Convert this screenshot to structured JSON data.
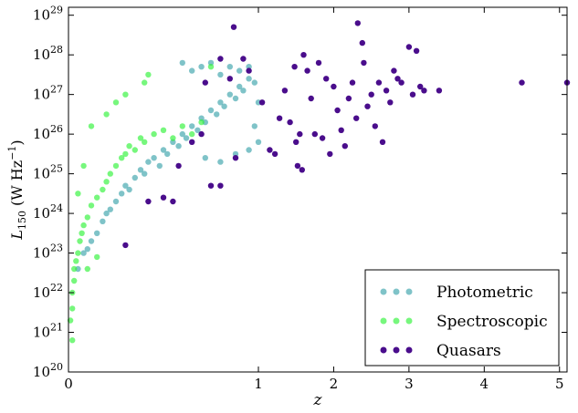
{
  "chart_data": {
    "type": "scatter",
    "title": "",
    "xlabel": "z",
    "ylabel": "L150 (W Hz−1)",
    "ylabel_parts": {
      "main": "L",
      "sub": "150",
      "unit_open": " (W Hz",
      "sup": "−1",
      "unit_close": ")"
    },
    "x_scale": "custom-stretched",
    "x_ticks": [
      {
        "value": 0,
        "label": "0"
      },
      {
        "value": 1,
        "label": "1"
      },
      {
        "value": 2,
        "label": "2"
      },
      {
        "value": 3,
        "label": "3"
      },
      {
        "value": 4,
        "label": "4"
      },
      {
        "value": 5,
        "label": "5"
      }
    ],
    "y_scale": "log",
    "y_ticks": [
      {
        "exp": 20,
        "base": "10",
        "sup": "20"
      },
      {
        "exp": 21,
        "base": "10",
        "sup": "21"
      },
      {
        "exp": 22,
        "base": "10",
        "sup": "22"
      },
      {
        "exp": 23,
        "base": "10",
        "sup": "23"
      },
      {
        "exp": 24,
        "base": "10",
        "sup": "24"
      },
      {
        "exp": 25,
        "base": "10",
        "sup": "25"
      },
      {
        "exp": 26,
        "base": "10",
        "sup": "26"
      },
      {
        "exp": 27,
        "base": "10",
        "sup": "27"
      },
      {
        "exp": 28,
        "base": "10",
        "sup": "28"
      },
      {
        "exp": 29,
        "base": "10",
        "sup": "29"
      }
    ],
    "xlim": [
      0,
      5.1
    ],
    "ylim_log10": [
      20,
      29.2
    ],
    "grid": false,
    "legend_position": "bottom-right",
    "series": [
      {
        "name": "Photometric",
        "color": "#3aa3aa",
        "points": [
          [
            0.05,
            22.6
          ],
          [
            0.08,
            23.0
          ],
          [
            0.1,
            23.1
          ],
          [
            0.12,
            23.3
          ],
          [
            0.15,
            23.5
          ],
          [
            0.18,
            23.8
          ],
          [
            0.2,
            24.0
          ],
          [
            0.22,
            24.1
          ],
          [
            0.25,
            24.3
          ],
          [
            0.28,
            24.5
          ],
          [
            0.3,
            24.7
          ],
          [
            0.32,
            24.6
          ],
          [
            0.35,
            24.9
          ],
          [
            0.38,
            25.1
          ],
          [
            0.4,
            25.0
          ],
          [
            0.42,
            25.3
          ],
          [
            0.45,
            25.4
          ],
          [
            0.48,
            25.2
          ],
          [
            0.5,
            25.6
          ],
          [
            0.52,
            25.5
          ],
          [
            0.55,
            25.8
          ],
          [
            0.58,
            25.7
          ],
          [
            0.6,
            26.0
          ],
          [
            0.62,
            25.9
          ],
          [
            0.65,
            26.2
          ],
          [
            0.68,
            26.1
          ],
          [
            0.7,
            26.4
          ],
          [
            0.72,
            26.3
          ],
          [
            0.75,
            26.6
          ],
          [
            0.78,
            26.5
          ],
          [
            0.8,
            26.8
          ],
          [
            0.82,
            26.7
          ],
          [
            0.85,
            27.0
          ],
          [
            0.88,
            26.9
          ],
          [
            0.9,
            27.2
          ],
          [
            0.92,
            27.1
          ],
          [
            0.95,
            27.4
          ],
          [
            0.98,
            27.3
          ],
          [
            1.0,
            26.8
          ],
          [
            0.6,
            27.8
          ],
          [
            0.65,
            27.6
          ],
          [
            0.7,
            27.7
          ],
          [
            0.75,
            27.8
          ],
          [
            0.8,
            27.5
          ],
          [
            0.85,
            27.7
          ],
          [
            0.9,
            27.6
          ],
          [
            0.95,
            27.7
          ],
          [
            0.72,
            25.4
          ],
          [
            0.8,
            25.3
          ],
          [
            0.88,
            25.5
          ],
          [
            0.95,
            25.6
          ],
          [
            1.0,
            25.8
          ],
          [
            0.98,
            26.2
          ]
        ]
      },
      {
        "name": "Spectroscopic",
        "color": "#2ef238",
        "points": [
          [
            0.01,
            21.3
          ],
          [
            0.02,
            21.6
          ],
          [
            0.02,
            22.0
          ],
          [
            0.03,
            22.3
          ],
          [
            0.03,
            22.6
          ],
          [
            0.04,
            22.8
          ],
          [
            0.05,
            23.0
          ],
          [
            0.06,
            23.3
          ],
          [
            0.07,
            23.5
          ],
          [
            0.08,
            23.7
          ],
          [
            0.1,
            23.9
          ],
          [
            0.12,
            24.2
          ],
          [
            0.15,
            24.4
          ],
          [
            0.18,
            24.6
          ],
          [
            0.2,
            24.8
          ],
          [
            0.22,
            25.0
          ],
          [
            0.25,
            25.2
          ],
          [
            0.28,
            25.4
          ],
          [
            0.3,
            25.5
          ],
          [
            0.32,
            25.7
          ],
          [
            0.35,
            25.6
          ],
          [
            0.38,
            25.9
          ],
          [
            0.4,
            25.8
          ],
          [
            0.45,
            26.0
          ],
          [
            0.5,
            26.1
          ],
          [
            0.55,
            25.9
          ],
          [
            0.6,
            26.2
          ],
          [
            0.65,
            26.0
          ],
          [
            0.7,
            26.3
          ],
          [
            0.4,
            27.3
          ],
          [
            0.42,
            27.5
          ],
          [
            0.75,
            27.7
          ],
          [
            0.05,
            24.5
          ],
          [
            0.08,
            25.2
          ],
          [
            0.12,
            26.2
          ],
          [
            0.2,
            26.5
          ],
          [
            0.25,
            26.8
          ],
          [
            0.3,
            27.0
          ],
          [
            0.15,
            22.9
          ],
          [
            0.1,
            22.6
          ],
          [
            0.02,
            20.8
          ]
        ]
      },
      {
        "name": "Quasars",
        "color": "#4a0d8c",
        "points": [
          [
            0.87,
            28.7
          ],
          [
            0.8,
            27.9
          ],
          [
            0.85,
            27.4
          ],
          [
            0.92,
            27.9
          ],
          [
            0.88,
            25.4
          ],
          [
            0.8,
            24.7
          ],
          [
            0.75,
            24.7
          ],
          [
            0.55,
            24.3
          ],
          [
            0.5,
            24.4
          ],
          [
            0.42,
            24.3
          ],
          [
            0.3,
            23.2
          ],
          [
            0.58,
            25.2
          ],
          [
            0.65,
            25.8
          ],
          [
            0.7,
            26.0
          ],
          [
            0.72,
            27.3
          ],
          [
            0.95,
            27.6
          ],
          [
            1.05,
            26.8
          ],
          [
            1.15,
            25.6
          ],
          [
            1.22,
            25.5
          ],
          [
            1.28,
            26.4
          ],
          [
            1.35,
            27.1
          ],
          [
            1.42,
            26.3
          ],
          [
            1.48,
            27.7
          ],
          [
            1.5,
            25.8
          ],
          [
            1.52,
            25.2
          ],
          [
            1.55,
            26.0
          ],
          [
            1.58,
            25.1
          ],
          [
            1.6,
            28.0
          ],
          [
            1.65,
            27.6
          ],
          [
            1.7,
            26.9
          ],
          [
            1.75,
            26.0
          ],
          [
            1.8,
            27.8
          ],
          [
            1.85,
            25.9
          ],
          [
            1.9,
            27.4
          ],
          [
            1.95,
            25.5
          ],
          [
            2.0,
            27.2
          ],
          [
            2.05,
            26.6
          ],
          [
            2.1,
            26.1
          ],
          [
            2.15,
            25.7
          ],
          [
            2.2,
            26.9
          ],
          [
            2.25,
            27.3
          ],
          [
            2.3,
            26.4
          ],
          [
            2.32,
            28.8
          ],
          [
            2.38,
            28.3
          ],
          [
            2.4,
            27.8
          ],
          [
            2.45,
            26.7
          ],
          [
            2.5,
            27.0
          ],
          [
            2.55,
            26.2
          ],
          [
            2.6,
            27.3
          ],
          [
            2.65,
            25.8
          ],
          [
            2.7,
            27.1
          ],
          [
            2.75,
            26.8
          ],
          [
            2.8,
            27.6
          ],
          [
            2.85,
            27.4
          ],
          [
            2.9,
            27.3
          ],
          [
            3.0,
            28.2
          ],
          [
            3.05,
            27.0
          ],
          [
            3.1,
            28.1
          ],
          [
            3.15,
            27.2
          ],
          [
            3.2,
            27.1
          ],
          [
            3.4,
            27.1
          ],
          [
            4.5,
            27.3
          ],
          [
            5.1,
            27.3
          ]
        ]
      }
    ]
  }
}
